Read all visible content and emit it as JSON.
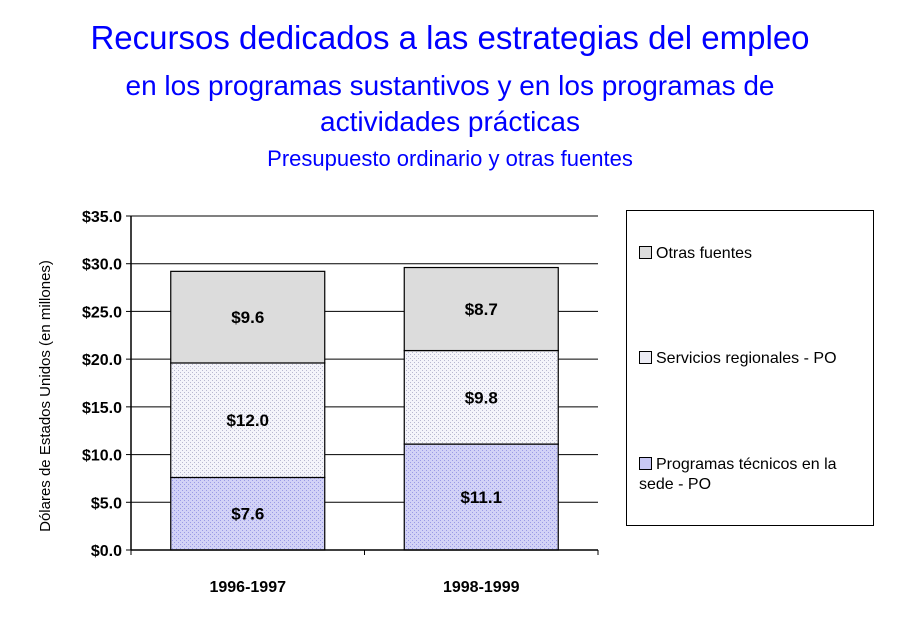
{
  "title": {
    "line1": "Recursos dedicados a las estrategias del empleo",
    "line2a": "en los programas sustantivos y en los programas de",
    "line2b": "actividades prácticas",
    "line3": "Presupuesto ordinario y otras fuentes"
  },
  "chart_data": {
    "type": "bar",
    "stacked": true,
    "categories": [
      "1996-1997",
      "1998-1999"
    ],
    "series": [
      {
        "name": "Programas técnicos en la sede - PO",
        "values": [
          7.6,
          11.1
        ],
        "labels": [
          "$7.6",
          "$11.1"
        ],
        "color": "#c8c8f4"
      },
      {
        "name": "Servicios regionales - PO",
        "values": [
          12.0,
          9.8
        ],
        "labels": [
          "$12.0",
          "$9.8"
        ],
        "color": "#e9e9f0"
      },
      {
        "name": "Otras fuentes",
        "values": [
          9.6,
          8.7
        ],
        "labels": [
          "$9.6",
          "$8.7"
        ],
        "color": "#dcdcdc"
      }
    ],
    "ylabel": "Dólares de Estados Unidos (en millones)",
    "xlabel": "",
    "ylim": [
      0,
      35
    ],
    "yticks": [
      0,
      5,
      10,
      15,
      20,
      25,
      30,
      35
    ],
    "ytick_labels": [
      "$0.0",
      "$5.0",
      "$10.0",
      "$15.0",
      "$20.0",
      "$25.0",
      "$30.0",
      "$35.0"
    ],
    "grid": true,
    "legend_position": "right"
  },
  "legend": {
    "items": [
      {
        "label": "Otras fuentes",
        "color": "#dcdcdc"
      },
      {
        "label": "Servicios regionales - PO",
        "color": "#e9e9f0"
      },
      {
        "label": "Programas técnicos en la sede - PO",
        "color": "#c8c8f4"
      }
    ]
  }
}
